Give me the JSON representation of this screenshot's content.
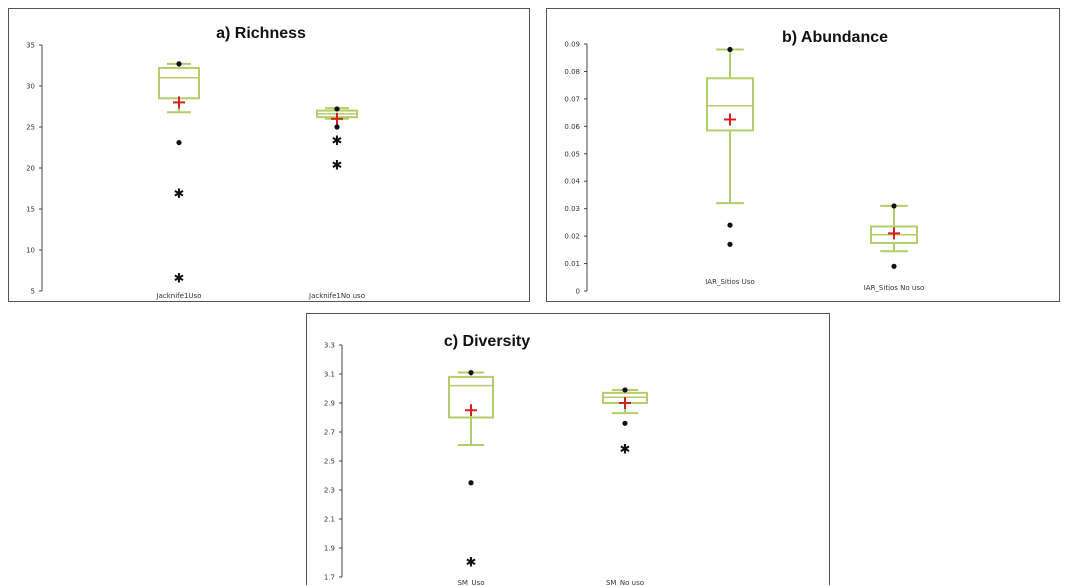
{
  "colors": {
    "box": "#b5cc6a",
    "mean": "#d42020",
    "outlier": "#111111",
    "axis": "#444444",
    "frame": "#555555"
  },
  "chart_data": [
    {
      "type": "box",
      "title": "a) Richness",
      "ylim": [
        5,
        35
      ],
      "yticks": [
        "35",
        "30",
        "25",
        "20",
        "15",
        "10",
        "5"
      ],
      "categories": [
        "Jacknife1Uso",
        "Jacknife1No uso"
      ],
      "boxes": [
        {
          "min": 26.8,
          "q1": 28.5,
          "median": 31.0,
          "q3": 32.2,
          "max": 32.7,
          "mean": 28.0,
          "outliers": [
            {
              "value": 32.7,
              "marker": "dot"
            },
            {
              "value": 23.1,
              "marker": "dot"
            },
            {
              "value": 16.8,
              "marker": "star"
            },
            {
              "value": 6.5,
              "marker": "star"
            }
          ]
        },
        {
          "min": 26.0,
          "q1": 26.2,
          "median": 26.6,
          "q3": 27.0,
          "max": 27.3,
          "mean": 26.0,
          "outliers": [
            {
              "value": 27.2,
              "marker": "dot"
            },
            {
              "value": 25.0,
              "marker": "dot"
            },
            {
              "value": 23.3,
              "marker": "star"
            },
            {
              "value": 20.3,
              "marker": "star"
            }
          ]
        }
      ],
      "grid": false
    },
    {
      "type": "box",
      "title": "b) Abundance",
      "ylim": [
        0,
        0.09
      ],
      "yticks": [
        "0.09",
        "0.08",
        "0.07",
        "0.06",
        "0.05",
        "0.04",
        "0.03",
        "0.02",
        "0.01",
        "0"
      ],
      "categories": [
        "IAR_Sitios Uso",
        "IAR_Sitios No uso"
      ],
      "boxes": [
        {
          "min": 0.032,
          "q1": 0.0585,
          "median": 0.0675,
          "q3": 0.0775,
          "max": 0.088,
          "mean": 0.0625,
          "outliers": [
            {
              "value": 0.088,
              "marker": "dot"
            },
            {
              "value": 0.024,
              "marker": "dot"
            },
            {
              "value": 0.017,
              "marker": "dot"
            }
          ]
        },
        {
          "min": 0.0145,
          "q1": 0.0175,
          "median": 0.0205,
          "q3": 0.0235,
          "max": 0.031,
          "mean": 0.021,
          "outliers": [
            {
              "value": 0.031,
              "marker": "dot"
            },
            {
              "value": 0.009,
              "marker": "dot"
            }
          ]
        }
      ],
      "grid": false
    },
    {
      "type": "box",
      "title": "c) Diversity",
      "ylim": [
        1.7,
        3.3
      ],
      "yticks": [
        "3.3",
        "3.1",
        "2.9",
        "2.7",
        "2.5",
        "2.3",
        "2.1",
        "1.9",
        "1.7"
      ],
      "categories": [
        "SM_Uso",
        "SM_No uso"
      ],
      "boxes": [
        {
          "min": 2.61,
          "q1": 2.8,
          "median": 3.02,
          "q3": 3.08,
          "max": 3.11,
          "mean": 2.85,
          "outliers": [
            {
              "value": 3.11,
              "marker": "dot"
            },
            {
              "value": 2.35,
              "marker": "dot"
            },
            {
              "value": 1.8,
              "marker": "star"
            }
          ]
        },
        {
          "min": 2.83,
          "q1": 2.9,
          "median": 2.94,
          "q3": 2.97,
          "max": 2.99,
          "mean": 2.9,
          "outliers": [
            {
              "value": 2.99,
              "marker": "dot"
            },
            {
              "value": 2.76,
              "marker": "dot"
            },
            {
              "value": 2.58,
              "marker": "star"
            }
          ]
        }
      ],
      "grid": false
    }
  ]
}
